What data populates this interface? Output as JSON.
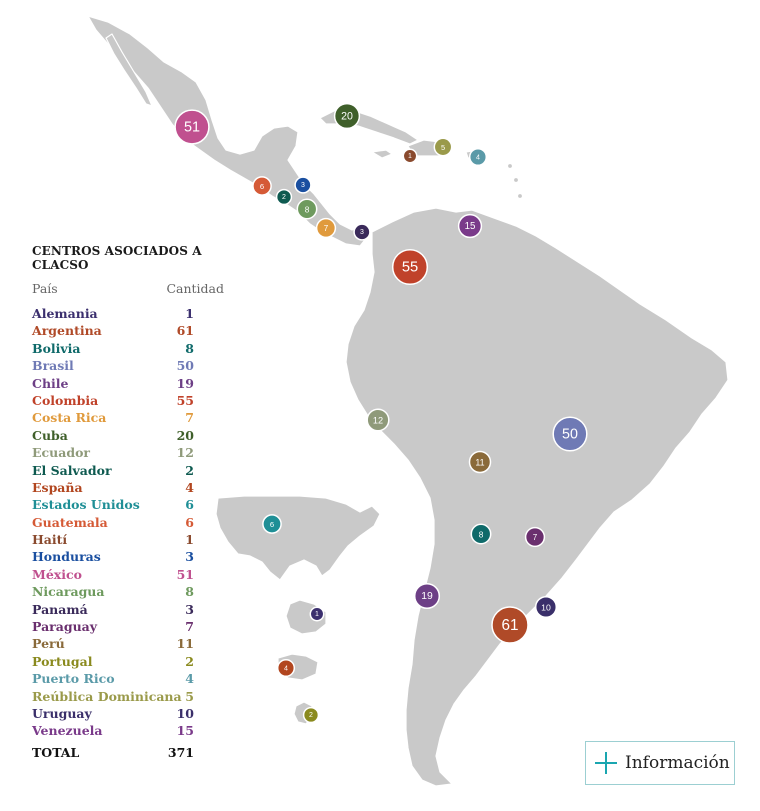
{
  "legend": {
    "title": "CENTROS ASOCIADOS A CLACSO",
    "col_country": "País",
    "col_count": "Cantidad",
    "rows": [
      {
        "pais": "Alemania",
        "cantidad": "1",
        "color": "#3b2f6e"
      },
      {
        "pais": "Argentina",
        "cantidad": "61",
        "color": "#b04a28"
      },
      {
        "pais": "Bolivia",
        "cantidad": "8",
        "color": "#0f6a6a"
      },
      {
        "pais": "Brasil",
        "cantidad": "50",
        "color": "#6f7ab5"
      },
      {
        "pais": "Chile",
        "cantidad": "19",
        "color": "#6d3f86"
      },
      {
        "pais": "Colombia",
        "cantidad": "55",
        "color": "#c0422a"
      },
      {
        "pais": "Costa Rica",
        "cantidad": "7",
        "color": "#e09a3c"
      },
      {
        "pais": "Cuba",
        "cantidad": "20",
        "color": "#3f5f2a"
      },
      {
        "pais": "Ecuador",
        "cantidad": "12",
        "color": "#8f9a7a"
      },
      {
        "pais": "El Salvador",
        "cantidad": "2",
        "color": "#0e5a50"
      },
      {
        "pais": "España",
        "cantidad": "4",
        "color": "#b2461f"
      },
      {
        "pais": "Estados Unidos",
        "cantidad": "6",
        "color": "#1f8f96"
      },
      {
        "pais": "Guatemala",
        "cantidad": "6",
        "color": "#d55a36"
      },
      {
        "pais": "Haití",
        "cantidad": "1",
        "color": "#8a4a2e"
      },
      {
        "pais": "Honduras",
        "cantidad": "3",
        "color": "#1a4fa0"
      },
      {
        "pais": "México",
        "cantidad": "51",
        "color": "#c0508f"
      },
      {
        "pais": "Nicaragua",
        "cantidad": "8",
        "color": "#6e9a5e"
      },
      {
        "pais": "Panamá",
        "cantidad": "3",
        "color": "#3a2a5a"
      },
      {
        "pais": "Paraguay",
        "cantidad": "7",
        "color": "#6a2f6e"
      },
      {
        "pais": "Perú",
        "cantidad": "11",
        "color": "#8a6a3a"
      },
      {
        "pais": "Portugal",
        "cantidad": "2",
        "color": "#8a8a1e"
      },
      {
        "pais": "Puerto Rico",
        "cantidad": "4",
        "color": "#5a9aa8"
      },
      {
        "pais": "Reública Dominicana",
        "cantidad": "5",
        "color": "#9a9a4a"
      },
      {
        "pais": "Uruguay",
        "cantidad": "10",
        "color": "#3a2f6a"
      },
      {
        "pais": "Venezuela",
        "cantidad": "15",
        "color": "#7a3a8a"
      }
    ],
    "total_label": "TOTAL",
    "total_value": "371"
  },
  "markers": [
    {
      "id": "mexico",
      "value": "51",
      "color": "#c0508f"
    },
    {
      "id": "cuba",
      "value": "20",
      "color": "#3f5f2a"
    },
    {
      "id": "haiti",
      "value": "1",
      "color": "#8a4a2e"
    },
    {
      "id": "republica-dominicana",
      "value": "5",
      "color": "#9a9a4a"
    },
    {
      "id": "puerto-rico",
      "value": "4",
      "color": "#5a9aa8"
    },
    {
      "id": "guatemala",
      "value": "6",
      "color": "#d55a36"
    },
    {
      "id": "honduras",
      "value": "3",
      "color": "#1a4fa0"
    },
    {
      "id": "el-salvador",
      "value": "2",
      "color": "#0e5a50"
    },
    {
      "id": "nicaragua",
      "value": "8",
      "color": "#6e9a5e"
    },
    {
      "id": "costa-rica",
      "value": "7",
      "color": "#e09a3c"
    },
    {
      "id": "panama",
      "value": "3",
      "color": "#3a2a5a"
    },
    {
      "id": "venezuela",
      "value": "15",
      "color": "#7a3a8a"
    },
    {
      "id": "colombia",
      "value": "55",
      "color": "#c0422a"
    },
    {
      "id": "ecuador",
      "value": "12",
      "color": "#8f9a7a"
    },
    {
      "id": "brasil",
      "value": "50",
      "color": "#6f7ab5"
    },
    {
      "id": "peru",
      "value": "11",
      "color": "#8a6a3a"
    },
    {
      "id": "bolivia",
      "value": "8",
      "color": "#0f6a6a"
    },
    {
      "id": "paraguay",
      "value": "7",
      "color": "#6a2f6e"
    },
    {
      "id": "chile",
      "value": "19",
      "color": "#6d3f86"
    },
    {
      "id": "argentina",
      "value": "61",
      "color": "#b04a28"
    },
    {
      "id": "uruguay",
      "value": "10",
      "color": "#3a2f6a"
    },
    {
      "id": "estados-unidos",
      "value": "6",
      "color": "#1f8f96"
    },
    {
      "id": "alemania",
      "value": "1",
      "color": "#3b2f6e"
    },
    {
      "id": "espana",
      "value": "4",
      "color": "#b2461f"
    },
    {
      "id": "portugal",
      "value": "2",
      "color": "#8a8a1e"
    }
  ],
  "info_button": {
    "label": "Información",
    "icon": "plus-icon",
    "border_color": "#9ccfd2",
    "icon_color": "#1aa6b0"
  },
  "land_color": "#c9c9c9"
}
